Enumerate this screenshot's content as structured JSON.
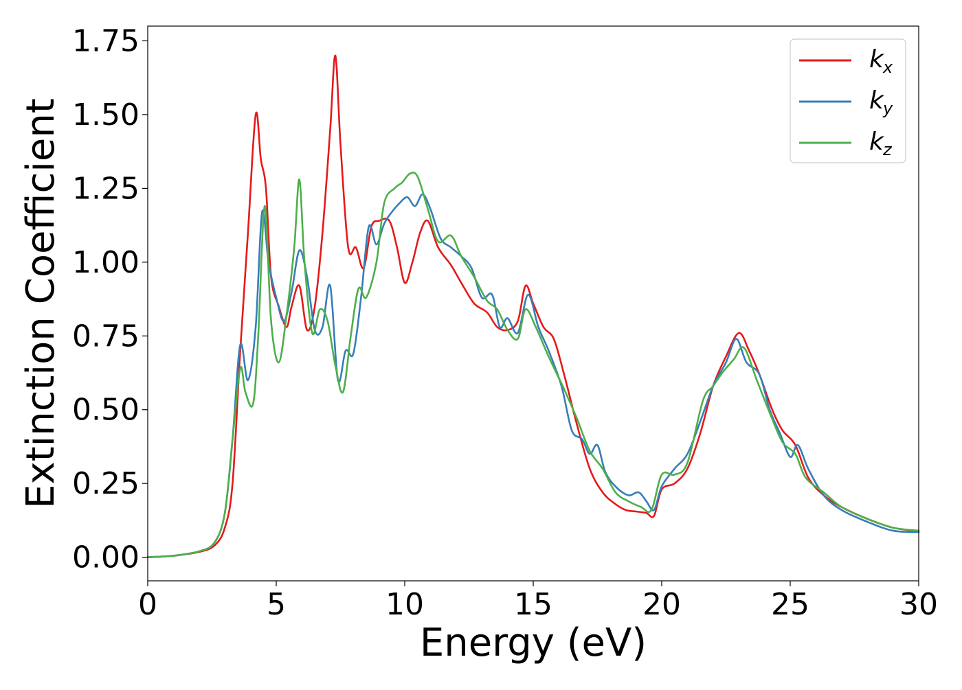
{
  "chart_data": {
    "type": "line",
    "title": "",
    "xlabel": "Energy (eV)",
    "ylabel": "Extinction Coefficient",
    "xlim": [
      0,
      30
    ],
    "ylim": [
      -0.08,
      1.8
    ],
    "xticks": [
      0,
      5,
      10,
      15,
      20,
      25,
      30
    ],
    "xtick_labels": [
      "0",
      "5",
      "10",
      "15",
      "20",
      "25",
      "30"
    ],
    "yticks": [
      0,
      0.25,
      0.5,
      0.75,
      1.0,
      1.25,
      1.5,
      1.75
    ],
    "ytick_labels": [
      "0.00",
      "0.25",
      "0.50",
      "0.75",
      "1.00",
      "1.25",
      "1.50",
      "1.75"
    ],
    "grid": false,
    "legend_position": "top-right",
    "series": [
      {
        "name": "k_x",
        "label_main": "k",
        "label_sub": "x",
        "color": "#e41a1c",
        "points": [
          [
            0,
            0
          ],
          [
            1,
            0.005
          ],
          [
            2,
            0.018
          ],
          [
            2.6,
            0.04
          ],
          [
            3.0,
            0.1
          ],
          [
            3.3,
            0.25
          ],
          [
            3.6,
            0.7
          ],
          [
            3.9,
            1.1
          ],
          [
            4.2,
            1.5
          ],
          [
            4.4,
            1.35
          ],
          [
            4.6,
            1.25
          ],
          [
            4.8,
            0.95
          ],
          [
            5.1,
            0.85
          ],
          [
            5.4,
            0.78
          ],
          [
            5.6,
            0.85
          ],
          [
            5.9,
            0.92
          ],
          [
            6.2,
            0.77
          ],
          [
            6.5,
            0.85
          ],
          [
            6.8,
            1.1
          ],
          [
            7.1,
            1.45
          ],
          [
            7.3,
            1.7
          ],
          [
            7.5,
            1.4
          ],
          [
            7.8,
            1.05
          ],
          [
            8.1,
            1.05
          ],
          [
            8.4,
            0.98
          ],
          [
            8.7,
            1.12
          ],
          [
            9.0,
            1.14
          ],
          [
            9.4,
            1.14
          ],
          [
            9.7,
            1.05
          ],
          [
            10.0,
            0.93
          ],
          [
            10.3,
            1.0
          ],
          [
            10.6,
            1.1
          ],
          [
            10.9,
            1.14
          ],
          [
            11.3,
            1.05
          ],
          [
            11.8,
            0.99
          ],
          [
            12.2,
            0.93
          ],
          [
            12.7,
            0.86
          ],
          [
            13.2,
            0.83
          ],
          [
            13.6,
            0.78
          ],
          [
            14.0,
            0.77
          ],
          [
            14.4,
            0.8
          ],
          [
            14.7,
            0.92
          ],
          [
            15.0,
            0.86
          ],
          [
            15.4,
            0.78
          ],
          [
            15.8,
            0.74
          ],
          [
            16.2,
            0.62
          ],
          [
            16.7,
            0.45
          ],
          [
            17.2,
            0.3
          ],
          [
            17.7,
            0.22
          ],
          [
            18.2,
            0.18
          ],
          [
            18.6,
            0.16
          ],
          [
            19.0,
            0.155
          ],
          [
            19.4,
            0.15
          ],
          [
            19.7,
            0.14
          ],
          [
            20.0,
            0.23
          ],
          [
            20.5,
            0.25
          ],
          [
            21.0,
            0.3
          ],
          [
            21.5,
            0.42
          ],
          [
            22.0,
            0.58
          ],
          [
            22.5,
            0.68
          ],
          [
            23.0,
            0.76
          ],
          [
            23.4,
            0.7
          ],
          [
            23.8,
            0.62
          ],
          [
            24.3,
            0.5
          ],
          [
            24.7,
            0.43
          ],
          [
            25.2,
            0.38
          ],
          [
            25.7,
            0.27
          ],
          [
            26.3,
            0.21
          ],
          [
            27.0,
            0.17
          ],
          [
            28.0,
            0.13
          ],
          [
            29.0,
            0.1
          ],
          [
            30,
            0.088
          ]
        ]
      },
      {
        "name": "k_y",
        "label_main": "k",
        "label_sub": "y",
        "color": "#377eb8",
        "points": [
          [
            0,
            0
          ],
          [
            1,
            0.005
          ],
          [
            2,
            0.02
          ],
          [
            2.6,
            0.05
          ],
          [
            3.0,
            0.15
          ],
          [
            3.3,
            0.4
          ],
          [
            3.6,
            0.72
          ],
          [
            3.9,
            0.6
          ],
          [
            4.2,
            0.78
          ],
          [
            4.45,
            1.17
          ],
          [
            4.7,
            1.0
          ],
          [
            5.0,
            0.88
          ],
          [
            5.3,
            0.8
          ],
          [
            5.6,
            0.9
          ],
          [
            5.9,
            1.04
          ],
          [
            6.2,
            0.95
          ],
          [
            6.5,
            0.77
          ],
          [
            6.8,
            0.78
          ],
          [
            7.1,
            0.92
          ],
          [
            7.4,
            0.6
          ],
          [
            7.7,
            0.7
          ],
          [
            8.0,
            0.69
          ],
          [
            8.3,
            0.88
          ],
          [
            8.6,
            1.12
          ],
          [
            8.9,
            1.06
          ],
          [
            9.2,
            1.13
          ],
          [
            9.5,
            1.17
          ],
          [
            9.8,
            1.2
          ],
          [
            10.1,
            1.22
          ],
          [
            10.4,
            1.19
          ],
          [
            10.7,
            1.23
          ],
          [
            11.0,
            1.18
          ],
          [
            11.4,
            1.08
          ],
          [
            11.8,
            1.05
          ],
          [
            12.2,
            1.02
          ],
          [
            12.6,
            0.98
          ],
          [
            13.0,
            0.88
          ],
          [
            13.4,
            0.89
          ],
          [
            13.7,
            0.78
          ],
          [
            14.0,
            0.81
          ],
          [
            14.4,
            0.76
          ],
          [
            14.8,
            0.89
          ],
          [
            15.2,
            0.78
          ],
          [
            15.6,
            0.7
          ],
          [
            16.1,
            0.58
          ],
          [
            16.5,
            0.43
          ],
          [
            16.9,
            0.4
          ],
          [
            17.2,
            0.35
          ],
          [
            17.5,
            0.38
          ],
          [
            17.8,
            0.29
          ],
          [
            18.2,
            0.24
          ],
          [
            18.7,
            0.21
          ],
          [
            19.1,
            0.22
          ],
          [
            19.4,
            0.19
          ],
          [
            19.7,
            0.16
          ],
          [
            20.0,
            0.24
          ],
          [
            20.5,
            0.3
          ],
          [
            21.0,
            0.35
          ],
          [
            21.5,
            0.46
          ],
          [
            22.0,
            0.58
          ],
          [
            22.5,
            0.66
          ],
          [
            22.9,
            0.74
          ],
          [
            23.3,
            0.66
          ],
          [
            23.8,
            0.62
          ],
          [
            24.2,
            0.5
          ],
          [
            24.6,
            0.42
          ],
          [
            25.0,
            0.34
          ],
          [
            25.3,
            0.38
          ],
          [
            25.7,
            0.3
          ],
          [
            26.3,
            0.21
          ],
          [
            27.0,
            0.16
          ],
          [
            28.0,
            0.12
          ],
          [
            29.0,
            0.09
          ],
          [
            30,
            0.085
          ]
        ]
      },
      {
        "name": "k_z",
        "label_main": "k",
        "label_sub": "z",
        "color": "#4daf4a",
        "points": [
          [
            0,
            0
          ],
          [
            1,
            0.005
          ],
          [
            2,
            0.02
          ],
          [
            2.6,
            0.05
          ],
          [
            3.0,
            0.15
          ],
          [
            3.3,
            0.4
          ],
          [
            3.6,
            0.64
          ],
          [
            3.8,
            0.56
          ],
          [
            4.1,
            0.52
          ],
          [
            4.3,
            0.75
          ],
          [
            4.55,
            1.19
          ],
          [
            4.8,
            0.8
          ],
          [
            5.1,
            0.66
          ],
          [
            5.4,
            0.82
          ],
          [
            5.7,
            1.05
          ],
          [
            5.9,
            1.28
          ],
          [
            6.1,
            1.0
          ],
          [
            6.4,
            0.76
          ],
          [
            6.7,
            0.84
          ],
          [
            7.0,
            0.8
          ],
          [
            7.3,
            0.65
          ],
          [
            7.6,
            0.56
          ],
          [
            7.9,
            0.75
          ],
          [
            8.2,
            0.91
          ],
          [
            8.5,
            0.88
          ],
          [
            8.9,
            1.0
          ],
          [
            9.2,
            1.2
          ],
          [
            9.6,
            1.25
          ],
          [
            9.9,
            1.27
          ],
          [
            10.2,
            1.3
          ],
          [
            10.5,
            1.29
          ],
          [
            10.9,
            1.18
          ],
          [
            11.3,
            1.07
          ],
          [
            11.8,
            1.09
          ],
          [
            12.2,
            1.02
          ],
          [
            12.7,
            0.95
          ],
          [
            13.2,
            0.87
          ],
          [
            13.6,
            0.84
          ],
          [
            14.0,
            0.77
          ],
          [
            14.4,
            0.74
          ],
          [
            14.7,
            0.84
          ],
          [
            15.1,
            0.78
          ],
          [
            15.6,
            0.68
          ],
          [
            16.2,
            0.57
          ],
          [
            16.7,
            0.47
          ],
          [
            17.2,
            0.36
          ],
          [
            17.7,
            0.3
          ],
          [
            18.2,
            0.22
          ],
          [
            18.7,
            0.19
          ],
          [
            19.2,
            0.17
          ],
          [
            19.6,
            0.16
          ],
          [
            20.0,
            0.28
          ],
          [
            20.5,
            0.28
          ],
          [
            21.0,
            0.32
          ],
          [
            21.6,
            0.53
          ],
          [
            22.0,
            0.58
          ],
          [
            22.4,
            0.63
          ],
          [
            22.8,
            0.67
          ],
          [
            23.2,
            0.71
          ],
          [
            23.7,
            0.6
          ],
          [
            24.2,
            0.49
          ],
          [
            24.7,
            0.39
          ],
          [
            25.2,
            0.35
          ],
          [
            25.6,
            0.27
          ],
          [
            26.3,
            0.22
          ],
          [
            27.0,
            0.17
          ],
          [
            28.0,
            0.13
          ],
          [
            29.0,
            0.1
          ],
          [
            30,
            0.09
          ]
        ]
      }
    ]
  }
}
